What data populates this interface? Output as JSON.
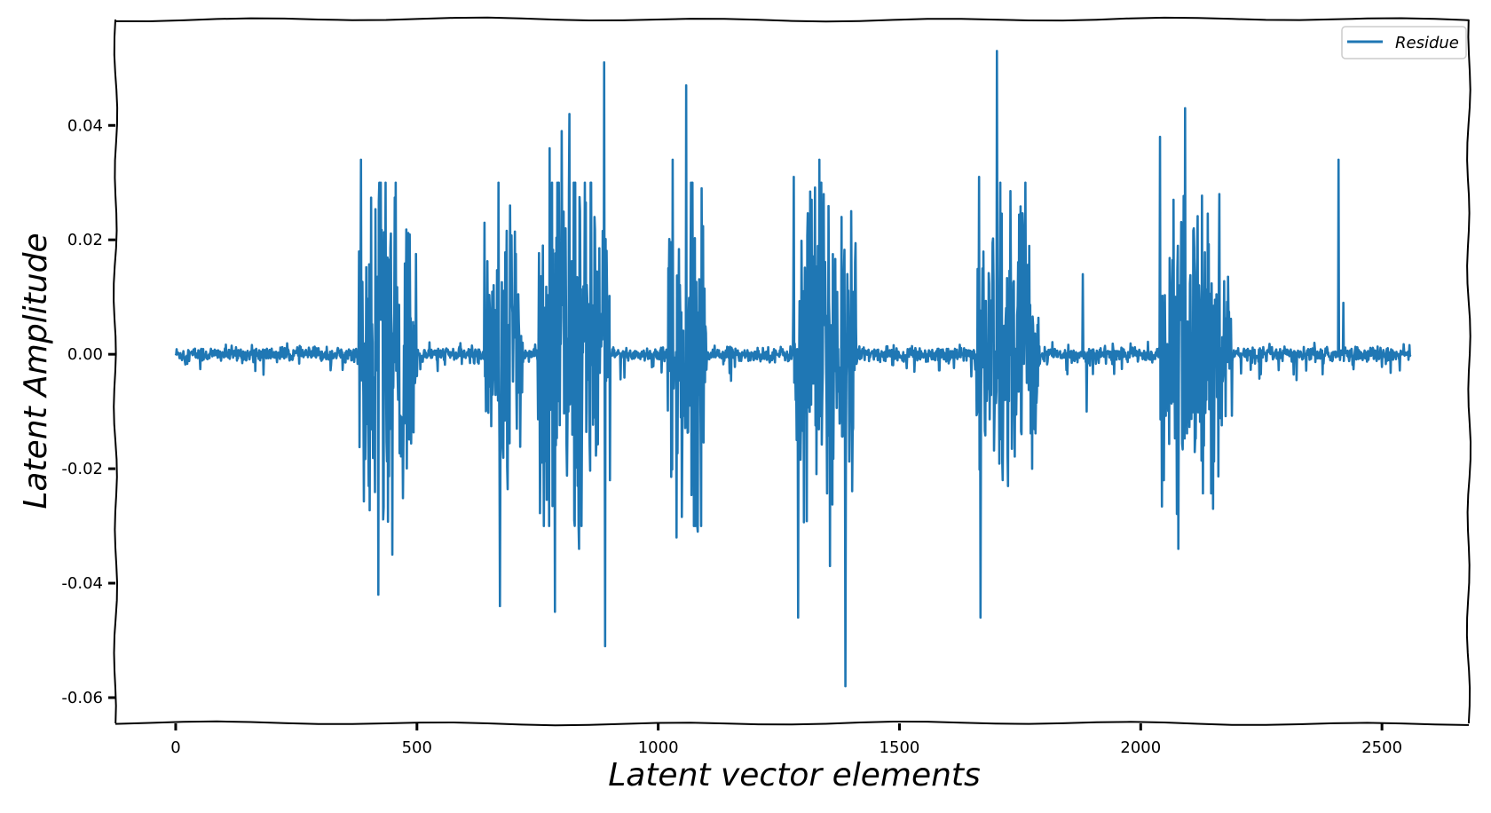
{
  "chart_data": {
    "type": "line",
    "title": "",
    "xlabel": "Latent vector elements",
    "ylabel": "Latent Amplitude",
    "xlim": [
      -125,
      2680
    ],
    "ylim": [
      -0.0645,
      0.0585
    ],
    "xticks": [
      0,
      500,
      1000,
      1500,
      2000,
      2500
    ],
    "xtick_labels": [
      "0",
      "500",
      "1000",
      "1500",
      "2000",
      "2500"
    ],
    "yticks": [
      0.04,
      0.02,
      0.0,
      -0.02,
      -0.04,
      -0.06
    ],
    "ytick_labels": [
      "0.04",
      "0.02",
      "0.00",
      "-0.02",
      "-0.04",
      "-0.06"
    ],
    "grid": false,
    "legend_position": "top-right",
    "style": "xkcd",
    "line_color": "#1f77b4",
    "series": [
      {
        "name": "Residue",
        "x_range": [
          0,
          2559
        ],
        "quiet_noise": 0.0008,
        "bursts": [
          {
            "x": [
              380,
              500
            ],
            "amp": 0.02
          },
          {
            "x": [
              640,
              720
            ],
            "amp": 0.017
          },
          {
            "x": [
              750,
              900
            ],
            "amp": 0.024
          },
          {
            "x": [
              1020,
              1100
            ],
            "amp": 0.02
          },
          {
            "x": [
              1280,
              1410
            ],
            "amp": 0.021
          },
          {
            "x": [
              1660,
              1790
            ],
            "amp": 0.019
          },
          {
            "x": [
              2040,
              2190
            ],
            "amp": 0.018
          }
        ],
        "peaks": [
          [
            384,
            0.034
          ],
          [
            420,
            -0.042
          ],
          [
            400,
            -0.023
          ],
          [
            449,
            -0.035
          ],
          [
            468,
            -0.013
          ],
          [
            640,
            0.023
          ],
          [
            672,
            -0.044
          ],
          [
            693,
            0.026
          ],
          [
            707,
            -0.013
          ],
          [
            775,
            0.036
          ],
          [
            786,
            -0.045
          ],
          [
            800,
            0.039
          ],
          [
            816,
            0.042
          ],
          [
            826,
            -0.029
          ],
          [
            836,
            -0.034
          ],
          [
            888,
            0.051
          ],
          [
            890,
            -0.051
          ],
          [
            868,
            0.024
          ],
          [
            1030,
            0.034
          ],
          [
            1038,
            -0.032
          ],
          [
            1058,
            0.047
          ],
          [
            1082,
            -0.031
          ],
          [
            1090,
            0.029
          ],
          [
            1281,
            0.031
          ],
          [
            1290,
            -0.046
          ],
          [
            1318,
            0.027
          ],
          [
            1334,
            0.034
          ],
          [
            1356,
            -0.037
          ],
          [
            1380,
            0.024
          ],
          [
            1388,
            -0.058
          ],
          [
            1400,
            0.025
          ],
          [
            1665,
            0.031
          ],
          [
            1668,
            -0.046
          ],
          [
            1702,
            0.053
          ],
          [
            1714,
            -0.022
          ],
          [
            1757,
            0.022
          ],
          [
            1775,
            -0.02
          ],
          [
            1880,
            0.014
          ],
          [
            1888,
            -0.01
          ],
          [
            2040,
            0.038
          ],
          [
            2048,
            -0.022
          ],
          [
            2068,
            0.027
          ],
          [
            2078,
            -0.034
          ],
          [
            2092,
            0.043
          ],
          [
            2110,
            0.022
          ],
          [
            2150,
            -0.027
          ],
          [
            2163,
            0.028
          ],
          [
            2410,
            0.034
          ],
          [
            2420,
            0.009
          ]
        ]
      }
    ]
  }
}
